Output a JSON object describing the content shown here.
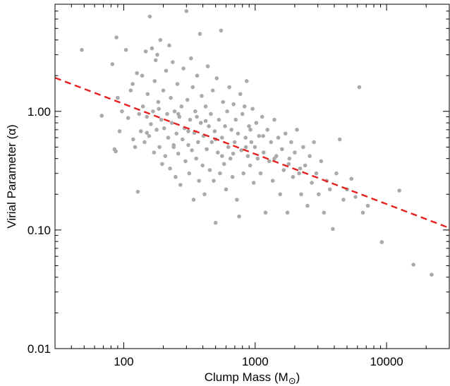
{
  "chart_data": {
    "type": "scatter",
    "title": "",
    "xlabel": "Clump Mass (M",
    "xlabel_sub": "⊙",
    "xlabel_close": ")",
    "ylabel": "Virial Parameter (α)",
    "xscale": "log",
    "yscale": "log",
    "xlim": [
      30,
      30000
    ],
    "ylim": [
      0.01,
      8
    ],
    "xticks": [
      {
        "value": 100,
        "label": "100"
      },
      {
        "value": 1000,
        "label": "1000"
      },
      {
        "value": 10000,
        "label": "10000"
      }
    ],
    "yticks": [
      {
        "value": 0.01,
        "label": "0.01"
      },
      {
        "value": 0.1,
        "label": "0.10"
      },
      {
        "value": 1.0,
        "label": "1.00"
      }
    ],
    "grid": false,
    "legend": "none",
    "series": [
      {
        "kind": "points",
        "color": "#aaaaaa",
        "points": [
          [
            48,
            3.3
          ],
          [
            68,
            0.92
          ],
          [
            82,
            2.5
          ],
          [
            85,
            0.48
          ],
          [
            87,
            0.46
          ],
          [
            88,
            4.2
          ],
          [
            90,
            1.3
          ],
          [
            93,
            0.68
          ],
          [
            97,
            1.0
          ],
          [
            104,
            3.3
          ],
          [
            108,
            0.88
          ],
          [
            113,
            1.5
          ],
          [
            117,
            1.7
          ],
          [
            118,
            0.58
          ],
          [
            122,
            0.5
          ],
          [
            126,
            2.1
          ],
          [
            128,
            0.21
          ],
          [
            131,
            0.95
          ],
          [
            135,
            0.68
          ],
          [
            138,
            2.0
          ],
          [
            140,
            1.1
          ],
          [
            144,
            0.55
          ],
          [
            147,
            3.2
          ],
          [
            150,
            0.9
          ],
          [
            152,
            1.4
          ],
          [
            156,
            0.62
          ],
          [
            158,
            6.3
          ],
          [
            161,
            0.78
          ],
          [
            164,
            3.4
          ],
          [
            167,
            1.0
          ],
          [
            170,
            0.45
          ],
          [
            172,
            1.8
          ],
          [
            175,
            2.7
          ],
          [
            178,
            0.7
          ],
          [
            180,
            3.0
          ],
          [
            183,
            1.2
          ],
          [
            187,
            0.5
          ],
          [
            190,
            4.0
          ],
          [
            193,
            0.85
          ],
          [
            196,
            0.36
          ],
          [
            200,
            1.5
          ],
          [
            203,
            0.72
          ],
          [
            207,
            0.42
          ],
          [
            210,
            2.2
          ],
          [
            214,
            0.95
          ],
          [
            218,
            0.6
          ],
          [
            222,
            3.6
          ],
          [
            225,
            0.33
          ],
          [
            228,
            1.3
          ],
          [
            232,
            0.8
          ],
          [
            236,
            2.6
          ],
          [
            240,
            0.5
          ],
          [
            244,
            1.0
          ],
          [
            248,
            0.28
          ],
          [
            252,
            0.65
          ],
          [
            256,
            1.7
          ],
          [
            260,
            0.44
          ],
          [
            265,
            0.9
          ],
          [
            270,
            0.24
          ],
          [
            275,
            1.1
          ],
          [
            280,
            0.58
          ],
          [
            285,
            2.3
          ],
          [
            290,
            0.72
          ],
          [
            295,
            0.38
          ],
          [
            300,
            7.0
          ],
          [
            305,
            1.25
          ],
          [
            310,
            0.52
          ],
          [
            315,
            0.3
          ],
          [
            320,
            0.85
          ],
          [
            325,
            2.8
          ],
          [
            330,
            0.47
          ],
          [
            335,
            1.6
          ],
          [
            340,
            0.18
          ],
          [
            345,
            0.66
          ],
          [
            350,
            1.0
          ],
          [
            356,
            0.4
          ],
          [
            362,
            2.0
          ],
          [
            368,
            0.55
          ],
          [
            374,
            0.26
          ],
          [
            380,
            4.5
          ],
          [
            386,
            0.8
          ],
          [
            392,
            1.35
          ],
          [
            398,
            0.35
          ],
          [
            405,
            0.62
          ],
          [
            412,
            0.2
          ],
          [
            420,
            1.1
          ],
          [
            428,
            0.48
          ],
          [
            436,
            2.4
          ],
          [
            444,
            0.75
          ],
          [
            452,
            0.32
          ],
          [
            460,
            0.95
          ],
          [
            468,
            0.55
          ],
          [
            476,
            1.5
          ],
          [
            484,
            0.26
          ],
          [
            492,
            0.68
          ],
          [
            500,
            0.115
          ],
          [
            510,
            1.9
          ],
          [
            520,
            0.45
          ],
          [
            530,
            0.85
          ],
          [
            540,
            0.3
          ],
          [
            550,
            4.8
          ],
          [
            560,
            0.6
          ],
          [
            570,
            1.2
          ],
          [
            580,
            0.36
          ],
          [
            590,
            0.75
          ],
          [
            600,
            0.22
          ],
          [
            612,
            1.0
          ],
          [
            624,
            0.5
          ],
          [
            636,
            1.6
          ],
          [
            648,
            0.4
          ],
          [
            660,
            0.7
          ],
          [
            672,
            0.28
          ],
          [
            685,
            1.15
          ],
          [
            698,
            0.55
          ],
          [
            712,
            0.85
          ],
          [
            726,
            0.18
          ],
          [
            740,
            0.65
          ],
          [
            755,
            0.13
          ],
          [
            770,
            1.4
          ],
          [
            785,
            0.47
          ],
          [
            800,
            0.95
          ],
          [
            815,
            0.3
          ],
          [
            830,
            1.1
          ],
          [
            846,
            0.6
          ],
          [
            862,
            1.8
          ],
          [
            880,
            0.42
          ],
          [
            898,
            0.75
          ],
          [
            916,
            0.35
          ],
          [
            935,
            0.55
          ],
          [
            955,
            1.05
          ],
          [
            975,
            0.25
          ],
          [
            995,
            0.5
          ],
          [
            1020,
            0.8
          ],
          [
            1045,
            0.4
          ],
          [
            1070,
            0.62
          ],
          [
            1100,
            0.3
          ],
          [
            1130,
            0.9
          ],
          [
            1160,
            0.45
          ],
          [
            1200,
            0.14
          ],
          [
            1240,
            0.7
          ],
          [
            1280,
            0.38
          ],
          [
            1320,
            0.55
          ],
          [
            1360,
            0.26
          ],
          [
            1400,
            0.85
          ],
          [
            1450,
            0.42
          ],
          [
            1500,
            0.6
          ],
          [
            1550,
            0.2
          ],
          [
            1600,
            0.48
          ],
          [
            1650,
            0.32
          ],
          [
            1700,
            0.65
          ],
          [
            1760,
            0.14
          ],
          [
            1820,
            0.4
          ],
          [
            1880,
            0.55
          ],
          [
            1940,
            0.28
          ],
          [
            2000,
            0.45
          ],
          [
            2080,
            0.7
          ],
          [
            2160,
            0.3
          ],
          [
            2240,
            0.2
          ],
          [
            2320,
            0.5
          ],
          [
            2400,
            0.35
          ],
          [
            2500,
            0.16
          ],
          [
            2600,
            0.42
          ],
          [
            2700,
            0.25
          ],
          [
            2800,
            0.55
          ],
          [
            2920,
            0.3
          ],
          [
            3040,
            0.2
          ],
          [
            3180,
            0.38
          ],
          [
            3340,
            0.14
          ],
          [
            3500,
            0.26
          ],
          [
            3700,
            0.22
          ],
          [
            3900,
            0.102
          ],
          [
            4150,
            0.3
          ],
          [
            4400,
            0.58
          ],
          [
            4700,
            0.18
          ],
          [
            5000,
            0.22
          ],
          [
            5400,
            0.27
          ],
          [
            5800,
            0.19
          ],
          [
            6200,
            1.6
          ],
          [
            6600,
            0.14
          ],
          [
            7200,
            0.16
          ],
          [
            9200,
            0.079
          ],
          [
            12500,
            0.215
          ],
          [
            16000,
            0.051
          ],
          [
            22000,
            0.042
          ],
          [
            150,
            0.66
          ],
          [
            260,
            0.95
          ],
          [
            420,
            0.83
          ],
          [
            680,
            0.44
          ],
          [
            1150,
            0.62
          ],
          [
            2200,
            0.33
          ],
          [
            185,
            1.05
          ],
          [
            310,
            0.68
          ],
          [
            500,
            0.58
          ],
          [
            850,
            0.5
          ],
          [
            1400,
            0.4
          ],
          [
            240,
            0.52
          ],
          [
            360,
            0.9
          ],
          [
            560,
            0.42
          ],
          [
            920,
            0.7
          ],
          [
            1800,
            0.36
          ]
        ]
      },
      {
        "kind": "fit-line",
        "style": "dashed",
        "color": "#e52020",
        "points": [
          [
            30,
            1.92
          ],
          [
            30000,
            0.104
          ]
        ]
      }
    ]
  }
}
